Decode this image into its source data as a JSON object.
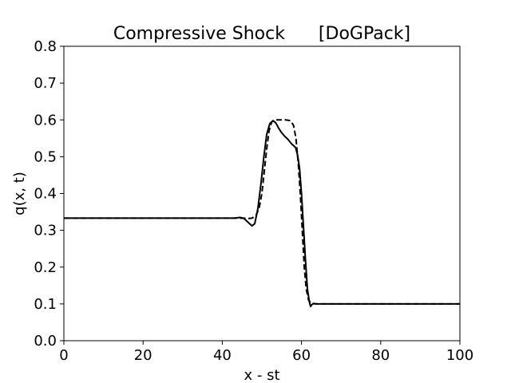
{
  "chart_data": {
    "type": "line",
    "title": "Compressive Shock      [DoGPack]",
    "xlabel": "x - st",
    "ylabel": "q(x, t)",
    "xlim": [
      0,
      100
    ],
    "ylim": [
      0.0,
      0.8
    ],
    "xticks": [
      0,
      20,
      40,
      60,
      80,
      100
    ],
    "xtick_labels": [
      "0",
      "20",
      "40",
      "60",
      "80",
      "100"
    ],
    "yticks": [
      0.0,
      0.1,
      0.2,
      0.3,
      0.4,
      0.5,
      0.6,
      0.7,
      0.8
    ],
    "ytick_labels": [
      "0.0",
      "0.1",
      "0.2",
      "0.3",
      "0.4",
      "0.5",
      "0.6",
      "0.7",
      "0.8"
    ],
    "grid": false,
    "series": [
      {
        "style": "solid",
        "color": "#000000",
        "x": [
          0,
          40,
          43,
          44.5,
          45.5,
          46.5,
          47.5,
          48.2,
          49,
          49.8,
          50.5,
          51.2,
          52,
          52.8,
          53.5,
          54.2,
          55,
          55.8,
          56.5,
          57.5,
          58.5,
          59,
          59.5,
          60,
          60.5,
          61,
          61.5,
          62,
          62.3,
          62.6,
          63,
          64,
          70,
          100
        ],
        "y": [
          0.333,
          0.333,
          0.333,
          0.335,
          0.332,
          0.322,
          0.312,
          0.318,
          0.36,
          0.43,
          0.5,
          0.56,
          0.59,
          0.598,
          0.592,
          0.578,
          0.565,
          0.555,
          0.548,
          0.535,
          0.525,
          0.505,
          0.47,
          0.4,
          0.31,
          0.22,
          0.14,
          0.105,
          0.093,
          0.098,
          0.101,
          0.1,
          0.1,
          0.1
        ]
      },
      {
        "style": "dashed",
        "color": "#000000",
        "x": [
          0,
          44,
          45.5,
          46.5,
          47.5,
          48.5,
          49.3,
          50,
          50.6,
          51.2,
          51.8,
          52.5,
          53.5,
          56,
          57.2,
          58,
          58.6,
          59.2,
          59.7,
          60.2,
          60.7,
          61.2,
          61.8,
          62.5,
          63.5,
          100
        ],
        "y": [
          0.333,
          0.333,
          0.333,
          0.332,
          0.333,
          0.34,
          0.36,
          0.4,
          0.46,
          0.52,
          0.57,
          0.595,
          0.6,
          0.6,
          0.598,
          0.585,
          0.55,
          0.48,
          0.4,
          0.3,
          0.2,
          0.14,
          0.11,
          0.101,
          0.1,
          0.1
        ]
      }
    ]
  }
}
